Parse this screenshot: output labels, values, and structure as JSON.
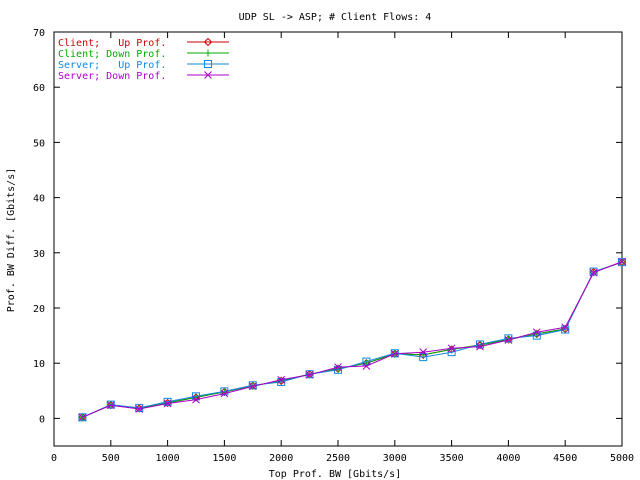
{
  "chart_data": {
    "type": "line",
    "title": "UDP SL -> ASP; # Client Flows: 4",
    "xlabel": "Top Prof. BW [Gbits/s]",
    "ylabel": "Prof. BW Diff. [Gbits/s]",
    "xlim": [
      0,
      5000
    ],
    "ylim": [
      -5,
      70
    ],
    "xticks": [
      0,
      500,
      1000,
      1500,
      2000,
      2500,
      3000,
      3500,
      4000,
      4500,
      5000
    ],
    "yticks": [
      0,
      10,
      20,
      30,
      40,
      50,
      60,
      70
    ],
    "grid": false,
    "legend_position": "top-left",
    "x": [
      250,
      500,
      750,
      1000,
      1250,
      1500,
      1750,
      2000,
      2250,
      2500,
      2750,
      3000,
      3250,
      3500,
      3750,
      4000,
      4250,
      4500,
      4750,
      5000
    ],
    "series": [
      {
        "name": "Client;   Up Prof.",
        "color": "#cc0000",
        "marker": "diamond",
        "values": [
          0.2,
          2.4,
          1.8,
          2.8,
          3.8,
          4.8,
          5.9,
          6.8,
          8.0,
          9.0,
          10.0,
          11.7,
          11.5,
          12.5,
          13.3,
          14.3,
          15.3,
          16.2,
          26.5,
          28.3
        ]
      },
      {
        "name": "Client; Down Prof.",
        "color": "#00aa00",
        "marker": "plus",
        "values": [
          0.2,
          2.4,
          1.8,
          2.8,
          3.8,
          4.8,
          5.9,
          6.8,
          8.0,
          9.0,
          10.0,
          11.7,
          11.5,
          12.5,
          13.3,
          14.3,
          15.3,
          16.2,
          26.5,
          28.3
        ]
      },
      {
        "name": "Server;   Up Prof.",
        "color": "#1188dd",
        "marker": "square",
        "values": [
          0.2,
          2.5,
          1.9,
          3.0,
          4.0,
          4.9,
          6.0,
          6.6,
          8.0,
          8.8,
          10.3,
          11.8,
          11.1,
          12.0,
          13.4,
          14.5,
          15.0,
          16.1,
          26.6,
          28.3
        ]
      },
      {
        "name": "Server; Down Prof.",
        "color": "#aa00cc",
        "marker": "x",
        "values": [
          0.2,
          2.4,
          1.7,
          2.7,
          3.4,
          4.5,
          5.8,
          7.0,
          7.9,
          9.3,
          9.5,
          11.7,
          12.0,
          12.7,
          13.0,
          14.2,
          15.6,
          16.5,
          26.4,
          28.4
        ]
      }
    ]
  }
}
